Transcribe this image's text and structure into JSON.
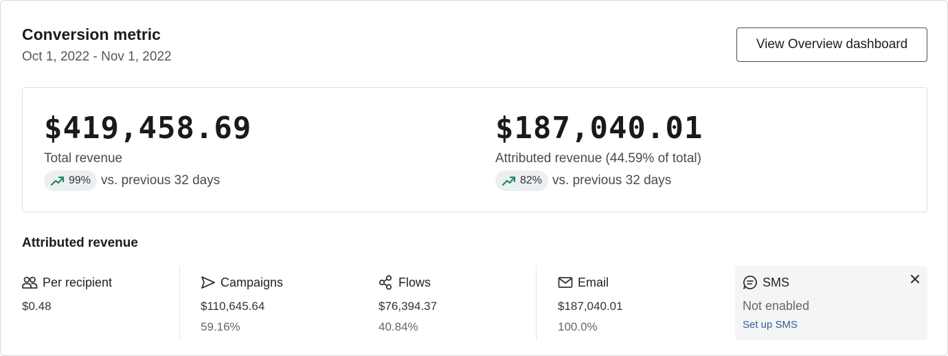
{
  "header": {
    "title": "Conversion metric",
    "date_range": "Oct 1, 2022 - Nov 1, 2022",
    "overview_button": "View Overview dashboard"
  },
  "summary": {
    "total": {
      "value": "$419,458.69",
      "label": "Total revenue",
      "change": "99%",
      "comparison": "vs. previous 32 days",
      "trend_icon": "trend-up-icon"
    },
    "attributed": {
      "value": "$187,040.01",
      "label": "Attributed revenue (44.59% of total)",
      "change": "82%",
      "comparison": "vs. previous 32 days",
      "trend_icon": "trend-up-icon"
    }
  },
  "attributed_revenue": {
    "title": "Attributed revenue",
    "columns": [
      {
        "label": "Per recipient",
        "icon": "users-icon",
        "value": "$0.48",
        "percent": ""
      },
      {
        "label": "Campaigns",
        "icon": "send-icon",
        "value": "$110,645.64",
        "percent": "59.16%"
      },
      {
        "label": "Flows",
        "icon": "flow-icon",
        "value": "$76,394.37",
        "percent": "40.84%"
      },
      {
        "label": "Email",
        "icon": "mail-icon",
        "value": "$187,040.01",
        "percent": "100.0%"
      }
    ],
    "sms": {
      "label": "SMS",
      "icon": "sms-icon",
      "status": "Not enabled",
      "link": "Set up SMS"
    }
  },
  "colors": {
    "trend_up": "#1f8a5b",
    "link": "#2f5d9c",
    "pill_bg": "#eceff1",
    "sms_bg": "#f4f5f6"
  }
}
